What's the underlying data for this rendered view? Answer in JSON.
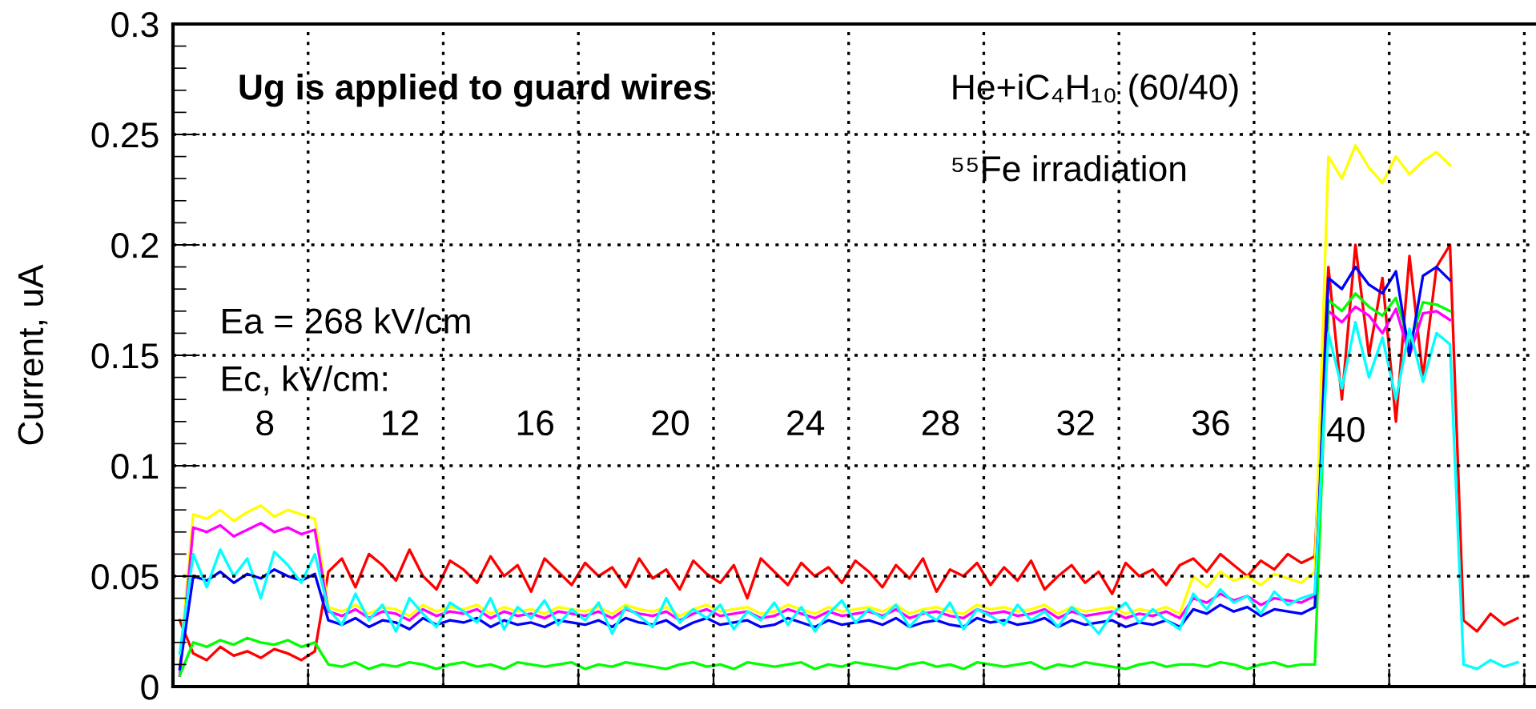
{
  "chart_data": {
    "type": "line",
    "ylabel": "Current, uA",
    "ylim": [
      0,
      0.3
    ],
    "yticks": [
      0,
      0.05,
      0.1,
      0.15,
      0.2,
      0.25,
      0.3
    ],
    "grid": true,
    "tick_labels": "y",
    "legend": false,
    "categories": [
      null,
      null,
      null,
      null,
      null,
      null,
      null,
      null,
      null,
      null,
      null,
      null,
      null,
      null,
      null,
      null,
      null,
      null,
      null,
      null,
      null,
      null,
      null,
      null,
      null,
      null,
      null,
      null,
      null,
      null,
      null,
      null,
      null,
      null,
      null,
      null,
      null,
      null,
      null,
      null,
      null,
      null,
      null,
      null,
      null,
      null,
      null,
      null,
      null,
      null,
      null,
      null,
      null,
      null,
      null,
      null,
      null,
      null,
      null,
      null,
      null,
      null,
      null,
      null,
      null,
      null,
      null,
      null,
      null,
      null,
      null,
      null,
      null,
      null,
      null,
      null,
      null,
      null,
      null,
      null,
      null,
      null,
      null,
      null,
      null,
      null,
      null,
      null,
      null,
      null,
      null,
      null,
      null,
      null,
      null,
      null,
      null,
      null,
      null,
      null,
      null,
      null
    ],
    "annotations": [
      "Ug is applied to guard wires",
      "He+iC₄H₁₀ (60/40)",
      "⁵⁵Fe irradiation",
      "Ea = 268 kV/cm",
      "Ec, kV/cm:",
      "8",
      "12",
      "16",
      "20",
      "24",
      "28",
      "32",
      "36",
      "40"
    ],
    "series": [
      {
        "color": "#ff0000",
        "values": [
          0.03,
          0.015,
          0.012,
          0.018,
          0.014,
          0.016,
          0.013,
          0.017,
          0.015,
          0.012,
          0.016,
          0.052,
          0.058,
          0.045,
          0.06,
          0.055,
          0.048,
          0.062,
          0.05,
          0.044,
          0.057,
          0.053,
          0.047,
          0.059,
          0.05,
          0.055,
          0.043,
          0.058,
          0.052,
          0.046,
          0.056,
          0.05,
          0.054,
          0.045,
          0.058,
          0.049,
          0.053,
          0.044,
          0.057,
          0.051,
          0.047,
          0.055,
          0.04,
          0.058,
          0.052,
          0.046,
          0.056,
          0.05,
          0.054,
          0.047,
          0.057,
          0.052,
          0.045,
          0.055,
          0.049,
          0.058,
          0.043,
          0.053,
          0.05,
          0.056,
          0.046,
          0.054,
          0.048,
          0.057,
          0.044,
          0.05,
          0.055,
          0.047,
          0.052,
          0.042,
          0.056,
          0.05,
          0.053,
          0.046,
          0.055,
          0.058,
          0.052,
          0.06,
          0.055,
          0.05,
          0.057,
          0.053,
          0.06,
          0.056,
          0.059,
          0.19,
          0.13,
          0.2,
          0.15,
          0.185,
          0.12,
          0.195,
          0.14,
          0.19,
          0.2,
          0.03,
          0.025,
          0.033,
          0.028,
          0.031,
          null,
          null
        ]
      },
      {
        "color": "#ffff00",
        "values": [
          0.01,
          0.078,
          0.076,
          0.08,
          0.075,
          0.079,
          0.082,
          0.077,
          0.08,
          0.078,
          0.076,
          0.036,
          0.034,
          0.037,
          0.033,
          0.036,
          0.035,
          0.032,
          0.037,
          0.034,
          0.036,
          0.035,
          0.037,
          0.033,
          0.036,
          0.034,
          0.035,
          0.033,
          0.036,
          0.035,
          0.034,
          0.036,
          0.033,
          0.037,
          0.035,
          0.034,
          0.036,
          0.032,
          0.035,
          0.037,
          0.034,
          0.035,
          0.036,
          0.033,
          0.034,
          0.037,
          0.035,
          0.033,
          0.036,
          0.034,
          0.035,
          0.036,
          0.034,
          0.037,
          0.033,
          0.035,
          0.036,
          0.034,
          0.033,
          0.037,
          0.035,
          0.036,
          0.034,
          0.035,
          0.037,
          0.033,
          0.036,
          0.034,
          0.035,
          0.036,
          0.033,
          0.035,
          0.034,
          0.036,
          0.033,
          0.05,
          0.045,
          0.052,
          0.048,
          0.05,
          0.046,
          0.051,
          0.049,
          0.047,
          0.052,
          0.24,
          0.23,
          0.245,
          0.235,
          0.228,
          0.24,
          0.232,
          0.238,
          0.242,
          0.236,
          null,
          null,
          null,
          null,
          null,
          null,
          null
        ]
      },
      {
        "color": "#ff00ff",
        "values": [
          0.005,
          0.072,
          0.07,
          0.073,
          0.068,
          0.071,
          0.074,
          0.07,
          0.072,
          0.069,
          0.071,
          0.034,
          0.032,
          0.035,
          0.031,
          0.034,
          0.033,
          0.03,
          0.035,
          0.032,
          0.034,
          0.033,
          0.035,
          0.031,
          0.034,
          0.032,
          0.033,
          0.031,
          0.034,
          0.033,
          0.032,
          0.034,
          0.031,
          0.035,
          0.033,
          0.032,
          0.034,
          0.03,
          0.033,
          0.035,
          0.032,
          0.033,
          0.034,
          0.031,
          0.032,
          0.035,
          0.033,
          0.031,
          0.034,
          0.032,
          0.033,
          0.034,
          0.032,
          0.035,
          0.031,
          0.033,
          0.034,
          0.032,
          0.031,
          0.035,
          0.033,
          0.034,
          0.032,
          0.033,
          0.035,
          0.031,
          0.034,
          0.032,
          0.033,
          0.034,
          0.031,
          0.033,
          0.032,
          0.034,
          0.031,
          0.04,
          0.038,
          0.042,
          0.039,
          0.041,
          0.037,
          0.04,
          0.039,
          0.038,
          0.041,
          0.17,
          0.165,
          0.172,
          0.168,
          0.16,
          0.171,
          0.15,
          0.169,
          0.17,
          0.166,
          null,
          null,
          null,
          null,
          null,
          null,
          null
        ]
      },
      {
        "color": "#00ff00",
        "values": [
          0.005,
          0.02,
          0.018,
          0.021,
          0.019,
          0.022,
          0.02,
          0.019,
          0.021,
          0.018,
          0.02,
          0.01,
          0.009,
          0.011,
          0.008,
          0.01,
          0.009,
          0.011,
          0.01,
          0.008,
          0.01,
          0.011,
          0.009,
          0.01,
          0.008,
          0.011,
          0.01,
          0.009,
          0.01,
          0.011,
          0.008,
          0.01,
          0.009,
          0.011,
          0.01,
          0.009,
          0.008,
          0.01,
          0.011,
          0.009,
          0.01,
          0.008,
          0.011,
          0.01,
          0.009,
          0.01,
          0.011,
          0.008,
          0.01,
          0.009,
          0.011,
          0.01,
          0.009,
          0.008,
          0.01,
          0.011,
          0.009,
          0.01,
          0.008,
          0.011,
          0.01,
          0.009,
          0.01,
          0.011,
          0.008,
          0.01,
          0.009,
          0.011,
          0.01,
          0.009,
          0.008,
          0.01,
          0.011,
          0.009,
          0.01,
          0.01,
          0.009,
          0.011,
          0.01,
          0.008,
          0.01,
          0.011,
          0.009,
          0.01,
          0.01,
          0.175,
          0.17,
          0.178,
          0.172,
          0.168,
          0.176,
          0.155,
          0.174,
          0.173,
          0.17,
          null,
          null,
          null,
          null,
          null,
          null,
          null
        ]
      },
      {
        "color": "#0000ff",
        "values": [
          0.008,
          0.05,
          0.048,
          0.052,
          0.047,
          0.051,
          0.049,
          0.053,
          0.05,
          0.048,
          0.051,
          0.03,
          0.028,
          0.031,
          0.027,
          0.03,
          0.029,
          0.026,
          0.031,
          0.028,
          0.03,
          0.029,
          0.031,
          0.027,
          0.03,
          0.028,
          0.029,
          0.027,
          0.03,
          0.029,
          0.028,
          0.03,
          0.027,
          0.031,
          0.029,
          0.028,
          0.03,
          0.026,
          0.029,
          0.031,
          0.028,
          0.029,
          0.03,
          0.027,
          0.028,
          0.031,
          0.029,
          0.027,
          0.03,
          0.028,
          0.029,
          0.03,
          0.028,
          0.031,
          0.027,
          0.029,
          0.03,
          0.028,
          0.027,
          0.031,
          0.029,
          0.03,
          0.028,
          0.029,
          0.031,
          0.027,
          0.03,
          0.028,
          0.029,
          0.03,
          0.027,
          0.029,
          0.028,
          0.03,
          0.027,
          0.035,
          0.033,
          0.037,
          0.034,
          0.036,
          0.032,
          0.035,
          0.034,
          0.033,
          0.036,
          0.185,
          0.18,
          0.19,
          0.182,
          0.178,
          0.188,
          0.15,
          0.186,
          0.19,
          0.184,
          null,
          null,
          null,
          null,
          null,
          null,
          null
        ]
      },
      {
        "color": "#00ffff",
        "values": [
          0.015,
          0.06,
          0.045,
          0.062,
          0.05,
          0.058,
          0.04,
          0.061,
          0.055,
          0.047,
          0.06,
          0.035,
          0.028,
          0.042,
          0.03,
          0.037,
          0.025,
          0.04,
          0.033,
          0.027,
          0.038,
          0.034,
          0.029,
          0.04,
          0.026,
          0.036,
          0.031,
          0.039,
          0.028,
          0.035,
          0.03,
          0.038,
          0.024,
          0.036,
          0.032,
          0.027,
          0.04,
          0.029,
          0.035,
          0.031,
          0.037,
          0.026,
          0.034,
          0.03,
          0.038,
          0.028,
          0.036,
          0.025,
          0.033,
          0.039,
          0.029,
          0.035,
          0.031,
          0.037,
          0.027,
          0.034,
          0.03,
          0.038,
          0.026,
          0.035,
          0.032,
          0.028,
          0.037,
          0.03,
          0.034,
          0.027,
          0.036,
          0.031,
          0.024,
          0.033,
          0.038,
          0.029,
          0.035,
          0.03,
          0.026,
          0.042,
          0.035,
          0.044,
          0.038,
          0.041,
          0.033,
          0.043,
          0.037,
          0.04,
          0.042,
          0.16,
          0.135,
          0.165,
          0.14,
          0.158,
          0.13,
          0.162,
          0.138,
          0.16,
          0.155,
          0.01,
          0.008,
          0.012,
          0.009,
          0.011,
          null,
          null
        ]
      }
    ]
  }
}
